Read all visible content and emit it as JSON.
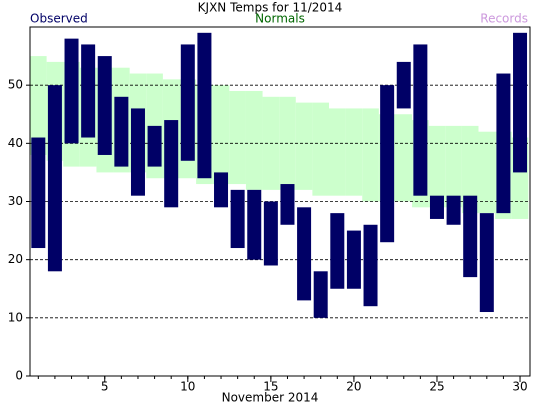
{
  "chart_data": {
    "type": "floating_bar",
    "title": "KJXN Temps for 11/2014",
    "x_label": "November 2014",
    "x": [
      1,
      2,
      3,
      4,
      5,
      6,
      7,
      8,
      9,
      10,
      11,
      12,
      13,
      14,
      15,
      16,
      17,
      18,
      19,
      20,
      21,
      22,
      23,
      24,
      25,
      26,
      27,
      28,
      29,
      30
    ],
    "xlim": [
      0.5,
      30.6
    ],
    "xticks": [
      5,
      10,
      15,
      20,
      25,
      30
    ],
    "ylim": [
      0,
      60
    ],
    "yticks": [
      0,
      10,
      20,
      30,
      40,
      50
    ],
    "grid": true,
    "series": [
      {
        "name": "Normals",
        "color": "#ccffcc",
        "text_color": "#006600",
        "high": [
          55,
          54,
          54,
          53,
          53,
          53,
          52,
          52,
          51,
          51,
          50,
          50,
          49,
          49,
          48,
          48,
          47,
          47,
          46,
          46,
          46,
          45,
          45,
          44,
          43,
          43,
          43,
          42,
          42,
          41
        ],
        "low": [
          38,
          37,
          36,
          36,
          35,
          35,
          35,
          34,
          34,
          34,
          33,
          33,
          33,
          32,
          32,
          32,
          32,
          31,
          31,
          31,
          30,
          30,
          30,
          29,
          29,
          29,
          28,
          28,
          27,
          27
        ]
      },
      {
        "name": "Observed",
        "color": "#000066",
        "text_color": "#000066",
        "high": [
          41,
          50,
          58,
          57,
          55,
          48,
          46,
          43,
          44,
          57,
          59,
          35,
          32,
          32,
          30,
          33,
          29,
          18,
          28,
          25,
          26,
          50,
          54,
          57,
          31,
          31,
          31,
          28,
          52,
          59
        ],
        "low": [
          22,
          18,
          40,
          41,
          38,
          36,
          31,
          36,
          29,
          37,
          34,
          29,
          22,
          20,
          19,
          26,
          13,
          10,
          15,
          15,
          12,
          23,
          46,
          31,
          27,
          26,
          17,
          11,
          28,
          35
        ]
      },
      {
        "name": "Records",
        "color": "#cc99dd",
        "text_color": "#cc99dd"
      }
    ]
  }
}
